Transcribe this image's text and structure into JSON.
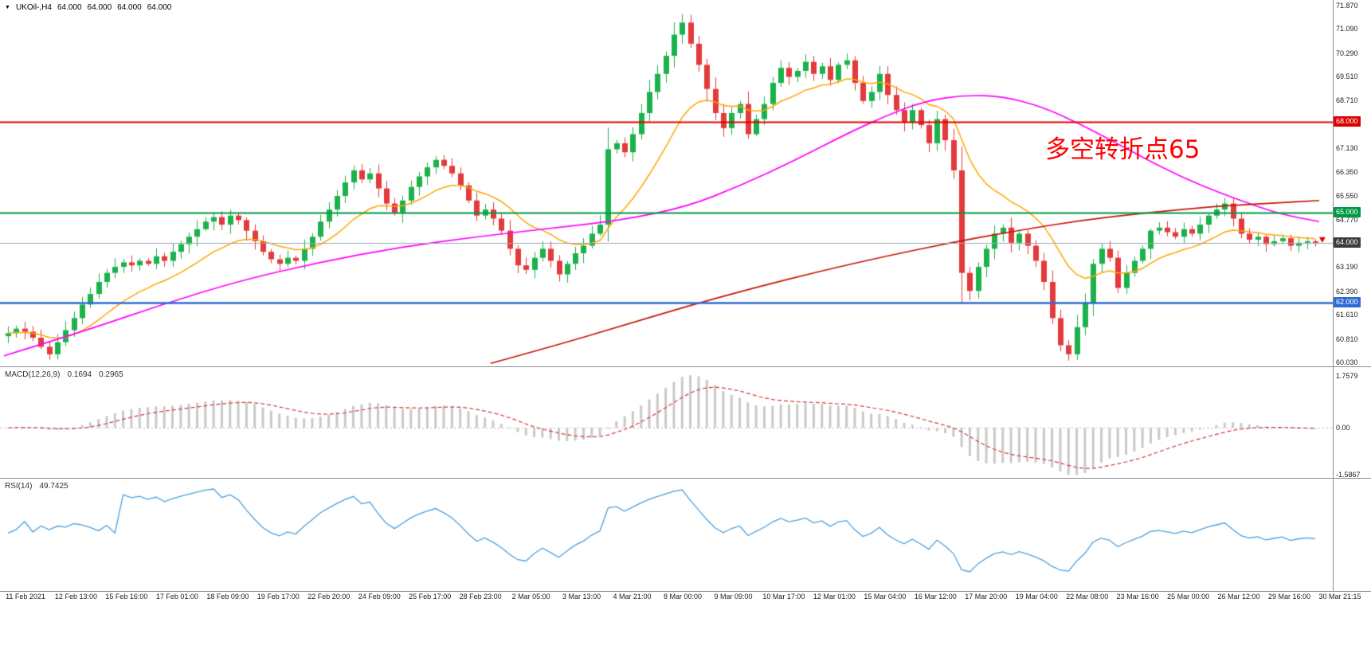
{
  "symbol_bar": {
    "symbol": "UKOil-,H4",
    "open": "64.000",
    "high": "64.000",
    "low": "64.000",
    "close": "64.000"
  },
  "annotation": {
    "text": "多空转折点65",
    "color": "#FF0000"
  },
  "chart_data": [
    {
      "name": "price",
      "type": "candlestick",
      "symbol": "UKOil-",
      "timeframe": "H4",
      "ylim": [
        59.9,
        72.05
      ],
      "up_color": "#1CB24B",
      "down_color": "#E33A3C",
      "current_price": 64.0,
      "y_ticks": [
        71.87,
        71.09,
        70.29,
        69.51,
        68.71,
        67.13,
        66.35,
        65.55,
        64.77,
        63.19,
        62.39,
        61.61,
        60.81,
        60.03
      ],
      "price_badges": [
        {
          "label": "68.000",
          "price": 68.0,
          "color": "#DD0000"
        },
        {
          "label": "65.000",
          "price": 65.0,
          "color": "#009944"
        },
        {
          "label": "64.000",
          "price": 64.0,
          "color": "#3C3C3C"
        },
        {
          "label": "62.000",
          "price": 62.0,
          "color": "#2E6BD6"
        }
      ],
      "hlines": [
        {
          "price": 68.0,
          "color": "#E00000",
          "width": 2
        },
        {
          "price": 65.0,
          "color": "#009944",
          "width": 2
        },
        {
          "price": 62.0,
          "color": "#2E6BD6",
          "width": 2.5
        },
        {
          "price": 64.0,
          "color": "#9AA7B8",
          "width": 1
        }
      ],
      "closes": [
        61.0,
        61.15,
        61.05,
        60.85,
        60.55,
        60.3,
        60.7,
        61.1,
        61.5,
        61.95,
        62.3,
        62.7,
        63.0,
        63.2,
        63.35,
        63.25,
        63.4,
        63.3,
        63.55,
        63.4,
        63.7,
        63.95,
        64.2,
        64.45,
        64.7,
        64.85,
        64.6,
        64.9,
        64.75,
        64.4,
        64.05,
        63.7,
        63.45,
        63.3,
        63.5,
        63.4,
        63.8,
        64.2,
        64.7,
        65.1,
        65.55,
        66.0,
        66.4,
        66.1,
        66.3,
        65.8,
        65.3,
        65.0,
        65.4,
        65.85,
        66.2,
        66.5,
        66.75,
        66.55,
        66.3,
        65.9,
        65.4,
        64.9,
        65.1,
        64.8,
        64.4,
        63.8,
        63.25,
        63.1,
        63.5,
        63.8,
        63.4,
        62.95,
        63.3,
        63.65,
        63.9,
        64.3,
        64.6,
        67.1,
        67.3,
        67.0,
        67.6,
        68.3,
        69.0,
        69.6,
        70.2,
        70.9,
        71.3,
        70.6,
        69.9,
        69.1,
        68.3,
        67.8,
        68.3,
        68.6,
        67.6,
        68.1,
        68.6,
        69.3,
        69.8,
        69.5,
        69.7,
        70.0,
        69.6,
        69.85,
        69.4,
        69.9,
        70.05,
        69.3,
        68.7,
        69.0,
        69.6,
        68.9,
        68.4,
        68.0,
        68.4,
        67.9,
        67.3,
        68.1,
        67.4,
        66.4,
        63.0,
        62.4,
        63.2,
        63.8,
        64.3,
        64.5,
        64.0,
        64.3,
        63.9,
        63.4,
        62.7,
        61.5,
        60.6,
        60.3,
        61.2,
        62.0,
        63.3,
        63.8,
        63.5,
        62.5,
        63.0,
        63.4,
        63.8,
        64.4,
        64.5,
        64.35,
        64.2,
        64.45,
        64.3,
        64.6,
        64.9,
        65.1,
        65.3,
        64.8,
        64.3,
        64.1,
        64.2,
        63.95,
        64.05,
        64.15,
        63.9,
        64.0,
        64.05,
        64.0
      ],
      "ma_fast": {
        "color": "#FFA500",
        "period": 14,
        "type": "ema"
      },
      "ma_mid": {
        "color": "#FF00FF",
        "points": [
          [
            0,
            60.25
          ],
          [
            0.06,
            61.05
          ],
          [
            0.12,
            61.95
          ],
          [
            0.18,
            62.75
          ],
          [
            0.24,
            63.35
          ],
          [
            0.3,
            63.85
          ],
          [
            0.36,
            64.2
          ],
          [
            0.42,
            64.5
          ],
          [
            0.47,
            64.75
          ],
          [
            0.52,
            65.2
          ],
          [
            0.56,
            65.9
          ],
          [
            0.6,
            66.7
          ],
          [
            0.64,
            67.6
          ],
          [
            0.67,
            68.2
          ],
          [
            0.7,
            68.7
          ],
          [
            0.73,
            68.9
          ],
          [
            0.76,
            68.85
          ],
          [
            0.79,
            68.5
          ],
          [
            0.82,
            67.9
          ],
          [
            0.85,
            67.2
          ],
          [
            0.88,
            66.5
          ],
          [
            0.91,
            65.9
          ],
          [
            0.94,
            65.4
          ],
          [
            0.97,
            64.95
          ],
          [
            1.0,
            64.7
          ]
        ]
      },
      "ma_slow": {
        "color": "#C21807",
        "points": [
          [
            0.37,
            60.0
          ],
          [
            0.42,
            60.6
          ],
          [
            0.47,
            61.25
          ],
          [
            0.52,
            61.9
          ],
          [
            0.57,
            62.5
          ],
          [
            0.62,
            63.05
          ],
          [
            0.67,
            63.55
          ],
          [
            0.72,
            64.0
          ],
          [
            0.77,
            64.4
          ],
          [
            0.82,
            64.75
          ],
          [
            0.87,
            65.0
          ],
          [
            0.92,
            65.2
          ],
          [
            0.96,
            65.3
          ],
          [
            1.0,
            65.4
          ]
        ]
      },
      "x_labels": [
        "11 Feb 2021",
        "12 Feb 13:00",
        "15 Feb 16:00",
        "17 Feb 01:00",
        "18 Feb 09:00",
        "19 Feb 17:00",
        "22 Feb 20:00",
        "24 Feb 09:00",
        "25 Feb 17:00",
        "28 Feb 23:00",
        "2 Mar 05:00",
        "3 Mar 13:00",
        "4 Mar 21:00",
        "8 Mar 00:00",
        "9 Mar 09:00",
        "10 Mar 17:00",
        "12 Mar 01:00",
        "15 Mar 04:00",
        "16 Mar 12:00",
        "17 Mar 20:00",
        "19 Mar 04:00",
        "22 Mar 08:00",
        "23 Mar 16:00",
        "25 Mar 00:00",
        "26 Mar 12:00",
        "29 Mar 16:00",
        "30 Mar 21:15"
      ]
    },
    {
      "name": "macd",
      "type": "bar+line",
      "label": "MACD(12,26,9)",
      "value_main": "0.1694",
      "value_signal": "0.2965",
      "params": [
        12,
        26,
        9
      ],
      "axis_labels": {
        "top": "1.7579",
        "zero": "0.00",
        "bottom": "-1.5867"
      },
      "extremes": [
        1.7579,
        -1.5867
      ],
      "hist_color": "#C9C9C9",
      "signal_color": "#D23B3B"
    },
    {
      "name": "rsi",
      "type": "line",
      "label": "RSI(14)",
      "value": "49.7425",
      "period": 14,
      "color": "#4DA0DC",
      "ylim": [
        10,
        90
      ]
    }
  ]
}
